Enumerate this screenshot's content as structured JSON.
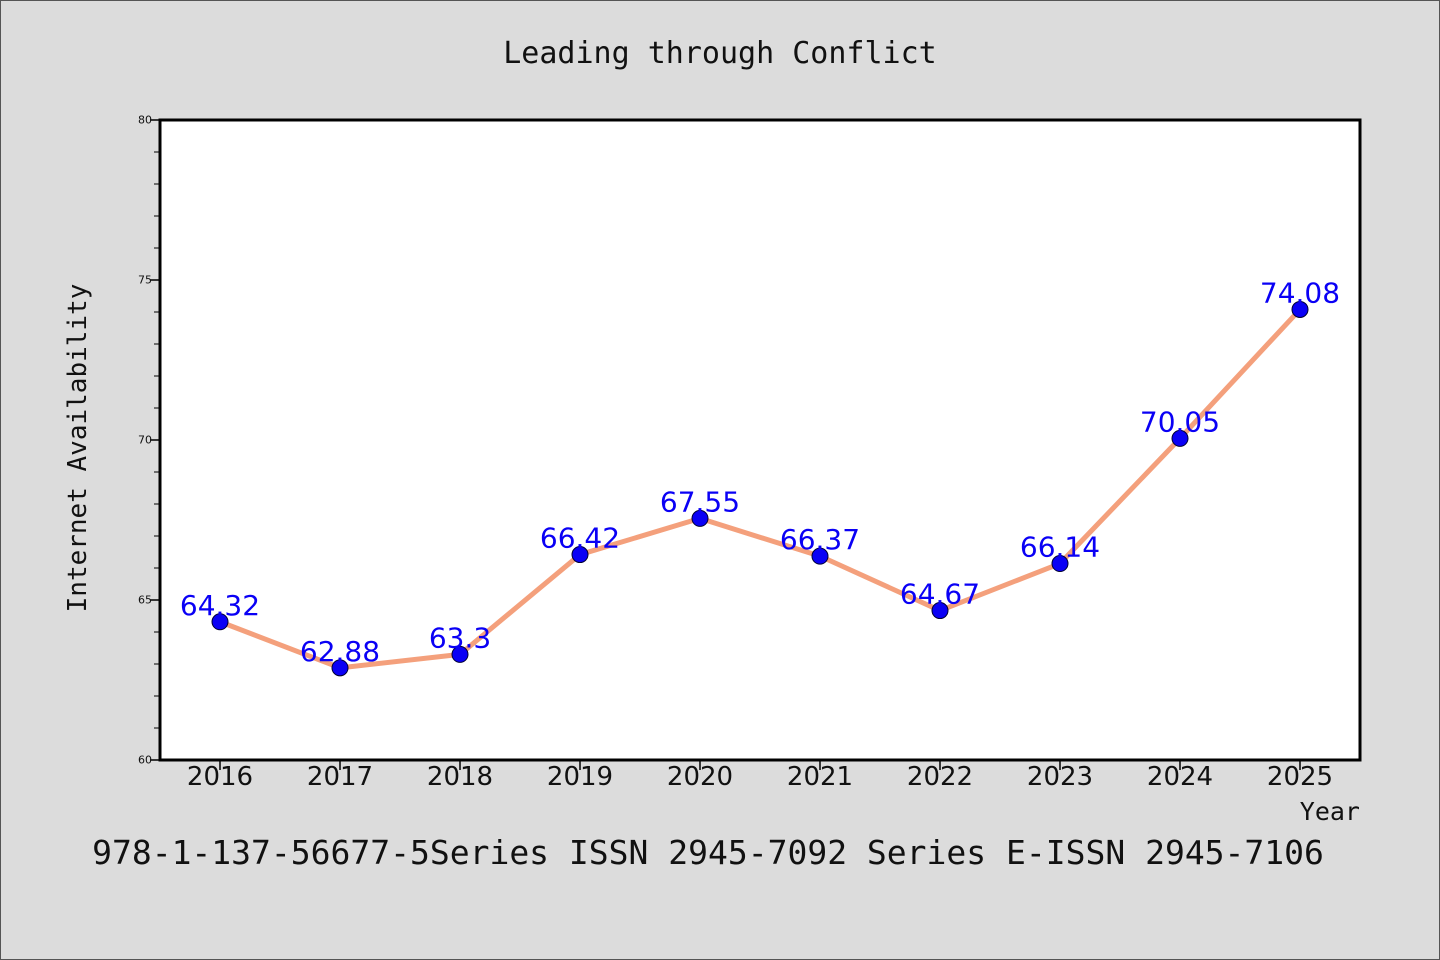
{
  "chart_data": {
    "type": "line",
    "title": "Leading through Conflict",
    "xlabel": "Year",
    "ylabel": "Internet Availability",
    "categories": [
      "2016",
      "2017",
      "2018",
      "2019",
      "2020",
      "2021",
      "2022",
      "2023",
      "2024",
      "2025"
    ],
    "series": [
      {
        "values": [
          64.32,
          62.88,
          63.3,
          66.42,
          67.55,
          66.37,
          64.67,
          66.14,
          70.05,
          74.08
        ],
        "labels": [
          "64.32",
          "62.88",
          "63.3",
          "66.42",
          "67.55",
          "66.37",
          "64.67",
          "66.14",
          "70.05",
          "74.08"
        ],
        "line_color": "#f4a07c",
        "marker_color": "#0a00f5"
      }
    ],
    "ylim": [
      60,
      80
    ],
    "yticks": [
      60,
      65,
      70,
      75,
      80
    ],
    "grid": false,
    "legend": "none",
    "background_color": "#dcdcdc",
    "plot_background_color": "#ffffff",
    "label_color": "#0a00f5",
    "footnote": "978-1-137-56677-5Series ISSN 2945-7092 Series E-ISSN 2945-7106"
  }
}
